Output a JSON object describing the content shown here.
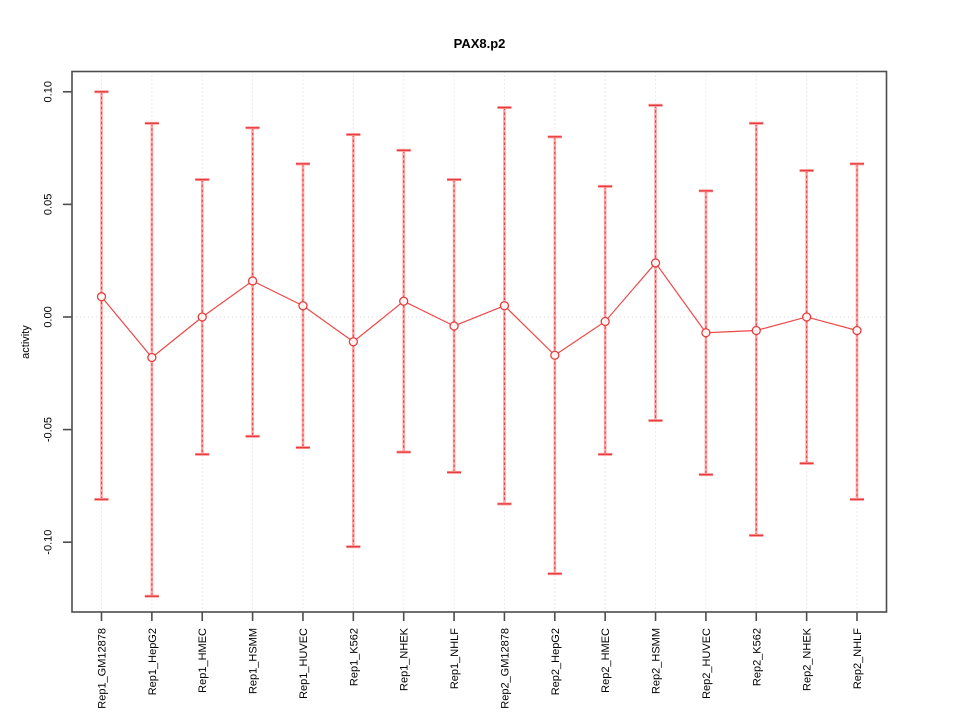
{
  "window": {
    "background": "#ffffff"
  },
  "chart_data": {
    "type": "scatter",
    "subtype": "points-with-error-bars",
    "title": "PAX8.p2",
    "xlabel": "",
    "ylabel": "activity",
    "categories": [
      "Rep1_GM12878",
      "Rep1_HepG2",
      "Rep1_HMEC",
      "Rep1_HSMM",
      "Rep1_HUVEC",
      "Rep1_K562",
      "Rep1_NHEK",
      "Rep1_NHLF",
      "Rep2_GM12878",
      "Rep2_HepG2",
      "Rep2_HMEC",
      "Rep2_HSMM",
      "Rep2_HUVEC",
      "Rep2_K562",
      "Rep2_NHEK",
      "Rep2_NHLF"
    ],
    "series": [
      {
        "name": "activity",
        "values": [
          0.009,
          -0.018,
          0.0,
          0.016,
          0.005,
          -0.011,
          0.007,
          -0.004,
          0.005,
          -0.017,
          -0.002,
          0.024,
          -0.007,
          -0.006,
          0.0,
          -0.006
        ]
      },
      {
        "name": "upper_error",
        "values": [
          0.1,
          0.086,
          0.061,
          0.084,
          0.068,
          0.081,
          0.074,
          0.061,
          0.093,
          0.08,
          0.058,
          0.094,
          0.056,
          0.086,
          0.065,
          0.068
        ]
      },
      {
        "name": "lower_error",
        "values": [
          -0.081,
          -0.124,
          -0.061,
          -0.053,
          -0.058,
          -0.102,
          -0.06,
          -0.069,
          -0.083,
          -0.114,
          -0.061,
          -0.046,
          -0.07,
          -0.097,
          -0.065,
          -0.081
        ]
      }
    ],
    "ylim": [
      -0.131,
      0.109
    ],
    "yticks": [
      0.1,
      0.05,
      0.0,
      -0.05,
      -0.1
    ],
    "ytick_labels": [
      "0.10",
      "0.05",
      "0.00",
      "-0.05",
      "-0.10"
    ],
    "grid": {
      "vertical_per_category": true,
      "horizontal_at_zero": true,
      "style": "dotted"
    },
    "legend": "none",
    "x_label_rotation_deg": 90,
    "colors": {
      "point": "#e63c3c",
      "error_bar_fill": "#ffa3a3",
      "error_bar_dash": "#e63c3c",
      "connect_line": "#ee4747",
      "grid": "#d9d9d9",
      "axis": "#4d4d4d",
      "text": "#000000"
    }
  }
}
